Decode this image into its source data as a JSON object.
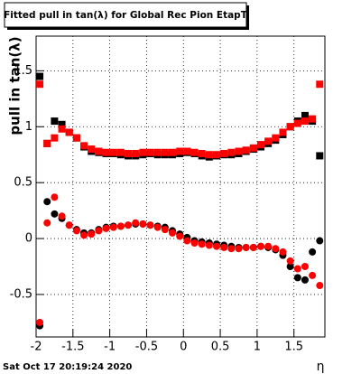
{
  "chart_data": {
    "type": "scatter",
    "title": "Fitted pull in tan(λ) for Global Rec Pion EtapT",
    "ylabel": "pull in tan(λ)",
    "xlabel": "η",
    "footer": "Sat Oct 17 20:19:24 2020",
    "xlim": [
      -2.0,
      1.92
    ],
    "ylim": [
      -0.88,
      1.81
    ],
    "xticks": [
      -2,
      -1.5,
      -1,
      -0.5,
      0,
      0.5,
      1,
      1.5
    ],
    "yticks": [
      -0.5,
      0,
      0.5,
      1,
      1.5
    ],
    "grid": true,
    "x": [
      -1.95,
      -1.85,
      -1.75,
      -1.65,
      -1.55,
      -1.45,
      -1.35,
      -1.25,
      -1.15,
      -1.05,
      -0.95,
      -0.85,
      -0.75,
      -0.65,
      -0.55,
      -0.45,
      -0.35,
      -0.25,
      -0.15,
      -0.05,
      0.05,
      0.15,
      0.25,
      0.35,
      0.45,
      0.55,
      0.65,
      0.75,
      0.85,
      0.95,
      1.05,
      1.15,
      1.25,
      1.35,
      1.45,
      1.55,
      1.65,
      1.75,
      1.85
    ],
    "series": [
      {
        "color": "#000000",
        "marker": "square",
        "values": [
          1.45,
          0.85,
          1.05,
          1.02,
          0.95,
          0.9,
          0.82,
          0.78,
          0.77,
          0.76,
          0.76,
          0.75,
          0.74,
          0.74,
          0.75,
          0.76,
          0.75,
          0.75,
          0.75,
          0.76,
          0.77,
          0.76,
          0.74,
          0.73,
          0.74,
          0.75,
          0.75,
          0.76,
          0.78,
          0.8,
          0.82,
          0.85,
          0.88,
          0.93,
          1.0,
          1.05,
          1.1,
          1.05,
          0.74
        ]
      },
      {
        "color": "#000000",
        "marker": "circle",
        "values": [
          -0.78,
          0.33,
          0.22,
          0.18,
          0.12,
          0.08,
          0.05,
          0.05,
          0.08,
          0.1,
          0.11,
          0.11,
          0.12,
          0.13,
          0.13,
          0.12,
          0.11,
          0.1,
          0.07,
          0.04,
          0.01,
          -0.02,
          -0.03,
          -0.04,
          -0.05,
          -0.06,
          -0.07,
          -0.08,
          -0.08,
          -0.08,
          -0.07,
          -0.08,
          -0.1,
          -0.15,
          -0.25,
          -0.35,
          -0.37,
          -0.12,
          -0.02
        ]
      },
      {
        "color": "#ff0000",
        "marker": "square",
        "values": [
          1.38,
          0.85,
          0.9,
          0.98,
          0.95,
          0.9,
          0.83,
          0.8,
          0.78,
          0.77,
          0.77,
          0.77,
          0.76,
          0.76,
          0.77,
          0.77,
          0.77,
          0.77,
          0.77,
          0.78,
          0.78,
          0.77,
          0.76,
          0.75,
          0.75,
          0.76,
          0.77,
          0.78,
          0.79,
          0.81,
          0.84,
          0.87,
          0.9,
          0.95,
          1.0,
          1.03,
          1.05,
          1.07,
          1.38
        ]
      },
      {
        "color": "#ff0000",
        "marker": "circle",
        "values": [
          -0.75,
          0.14,
          0.37,
          0.2,
          0.12,
          0.07,
          0.03,
          0.04,
          0.07,
          0.09,
          0.1,
          0.11,
          0.12,
          0.14,
          0.13,
          0.12,
          0.1,
          0.08,
          0.05,
          0.02,
          -0.02,
          -0.04,
          -0.05,
          -0.06,
          -0.07,
          -0.08,
          -0.09,
          -0.09,
          -0.08,
          -0.08,
          -0.07,
          -0.07,
          -0.09,
          -0.12,
          -0.2,
          -0.27,
          -0.25,
          -0.33,
          -0.42
        ]
      }
    ]
  }
}
